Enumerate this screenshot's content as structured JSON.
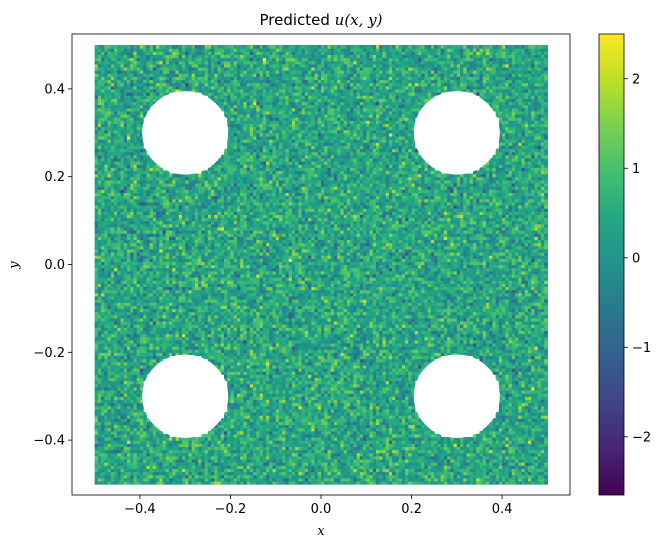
{
  "chart_data": {
    "type": "heatmap",
    "title_prefix": "Predicted ",
    "title_math": "u(x, y)",
    "xlabel": "x",
    "ylabel": "y",
    "xlim": [
      -0.55,
      0.55
    ],
    "ylim": [
      -0.525,
      0.525
    ],
    "domain": {
      "x": [
        -0.5,
        0.5
      ],
      "y": [
        -0.5,
        0.5
      ]
    },
    "holes": [
      {
        "cx": -0.3,
        "cy": 0.3,
        "r": 0.095
      },
      {
        "cx": 0.3,
        "cy": 0.3,
        "r": 0.095
      },
      {
        "cx": -0.3,
        "cy": -0.3,
        "r": 0.095
      },
      {
        "cx": 0.3,
        "cy": -0.3,
        "r": 0.095
      }
    ],
    "x_ticks": [
      -0.4,
      -0.2,
      0.0,
      0.2,
      0.4
    ],
    "x_tick_labels": [
      "−0.4",
      "−0.2",
      "0.0",
      "0.2",
      "0.4"
    ],
    "y_ticks": [
      -0.4,
      -0.2,
      0.0,
      0.2,
      0.4
    ],
    "y_tick_labels": [
      "−0.4",
      "−0.2",
      "0.0",
      "0.2",
      "0.4"
    ],
    "colorbar": {
      "colormap": "viridis",
      "range": [
        -2.65,
        2.5
      ],
      "ticks": [
        -2,
        -1,
        0,
        1,
        2
      ],
      "tick_labels": [
        "−2",
        "−1",
        "0",
        "1",
        "2"
      ]
    },
    "value_distribution": {
      "mean": 0.4,
      "std": 0.55,
      "min": -2.65,
      "max": 2.5
    }
  }
}
